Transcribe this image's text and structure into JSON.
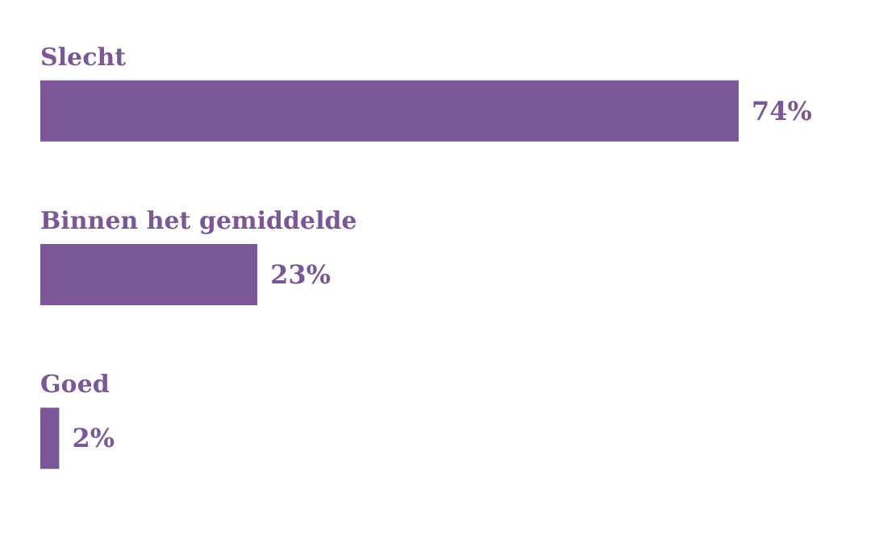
{
  "chart_data": {
    "type": "bar",
    "orientation": "horizontal",
    "categories": [
      "Slecht",
      "Binnen het gemiddelde",
      "Goed"
    ],
    "values": [
      74,
      23,
      2
    ],
    "value_labels": [
      "74%",
      "23%",
      "2%"
    ],
    "color": "#7b5797",
    "grid": false
  }
}
